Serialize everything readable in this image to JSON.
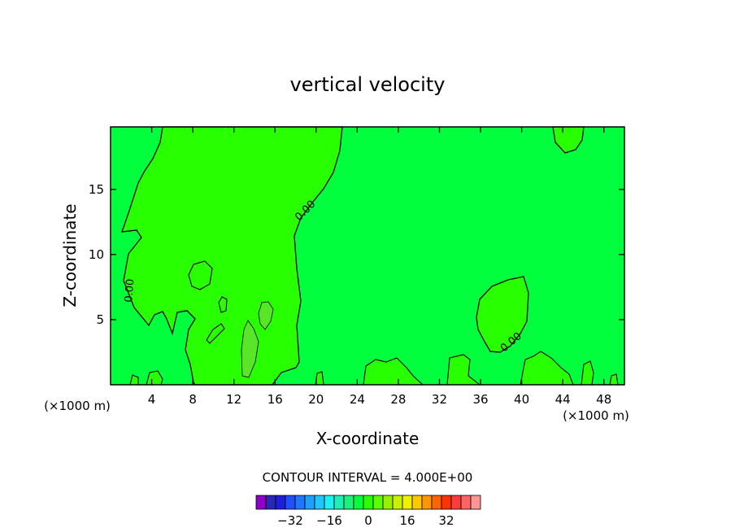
{
  "chart_data": {
    "type": "contour",
    "title": "vertical velocity",
    "xlabel": "X-coordinate",
    "ylabel": "Z-coordinate",
    "x_unit_left": "(×1000 m)",
    "x_unit_right": "(×1000 m)",
    "xlim": [
      0,
      50
    ],
    "ylim": [
      0,
      19.8
    ],
    "x_ticks": [
      4,
      8,
      12,
      16,
      20,
      24,
      28,
      32,
      36,
      40,
      44,
      48
    ],
    "y_ticks": [
      5,
      10,
      15
    ],
    "background_level_color": "#00ff3c",
    "contour_label": "0.00",
    "contour_interval_text": "CONTOUR INTERVAL = 4.000E+00",
    "colorbar": {
      "colors": [
        "#8c00c8",
        "#2828b4",
        "#1e1edc",
        "#1e50ff",
        "#1e78ff",
        "#1ea0ff",
        "#1ec8ff",
        "#1ef0f0",
        "#1ef0b4",
        "#1ef078",
        "#00ff3c",
        "#28ff00",
        "#5aff00",
        "#96f000",
        "#c8f000",
        "#f0f000",
        "#ffc800",
        "#ff9600",
        "#ff6400",
        "#ff3200",
        "#ff3c3c",
        "#ff6464",
        "#ff9696"
      ],
      "tick_labels": [
        "−32",
        "−16",
        "0",
        "16",
        "32"
      ],
      "tick_values": [
        -32,
        -16,
        0,
        16,
        32
      ]
    },
    "regions": [
      {
        "level": "0 to 4",
        "color": "#28ff00"
      },
      {
        "level": "4 to 8",
        "color": "#5ae628"
      }
    ]
  }
}
